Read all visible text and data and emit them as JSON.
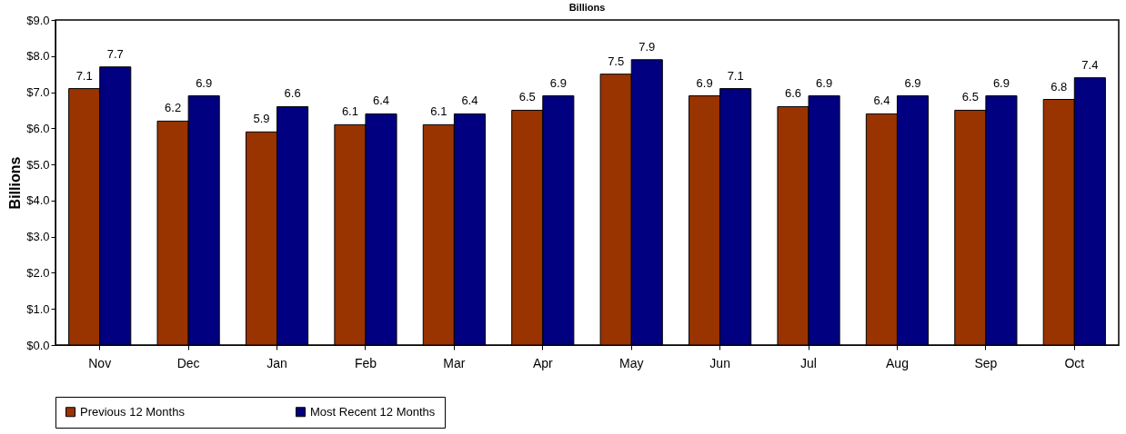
{
  "chart_data": {
    "type": "bar",
    "title": "Billions",
    "ylabel": "Billions",
    "categories": [
      "Nov",
      "Dec",
      "Jan",
      "Feb",
      "Mar",
      "Apr",
      "May",
      "Jun",
      "Jul",
      "Aug",
      "Sep",
      "Oct"
    ],
    "series": [
      {
        "name": "Previous 12 Months",
        "color": "#993300",
        "values": [
          7.1,
          6.2,
          5.9,
          6.1,
          6.1,
          6.5,
          7.5,
          6.9,
          6.6,
          6.4,
          6.5,
          6.8
        ]
      },
      {
        "name": "Most Recent 12 Months",
        "color": "#000080",
        "values": [
          7.7,
          6.9,
          6.6,
          6.4,
          6.4,
          6.9,
          7.9,
          7.1,
          6.9,
          6.9,
          6.9,
          7.4
        ]
      }
    ],
    "ylim": [
      0,
      9
    ],
    "yticks": [
      {
        "value": 0,
        "label": "$0.0"
      },
      {
        "value": 1,
        "label": "$1.0"
      },
      {
        "value": 2,
        "label": "$2.0"
      },
      {
        "value": 3,
        "label": "$3.0"
      },
      {
        "value": 4,
        "label": "$4.0"
      },
      {
        "value": 5,
        "label": "$5.0"
      },
      {
        "value": 6,
        "label": "$6.0"
      },
      {
        "value": 7,
        "label": "$7.0"
      },
      {
        "value": 8,
        "label": "$8.0"
      },
      {
        "value": 9,
        "label": "$9.0"
      }
    ],
    "data_labels": true,
    "legend": "bottom",
    "grid": false
  }
}
